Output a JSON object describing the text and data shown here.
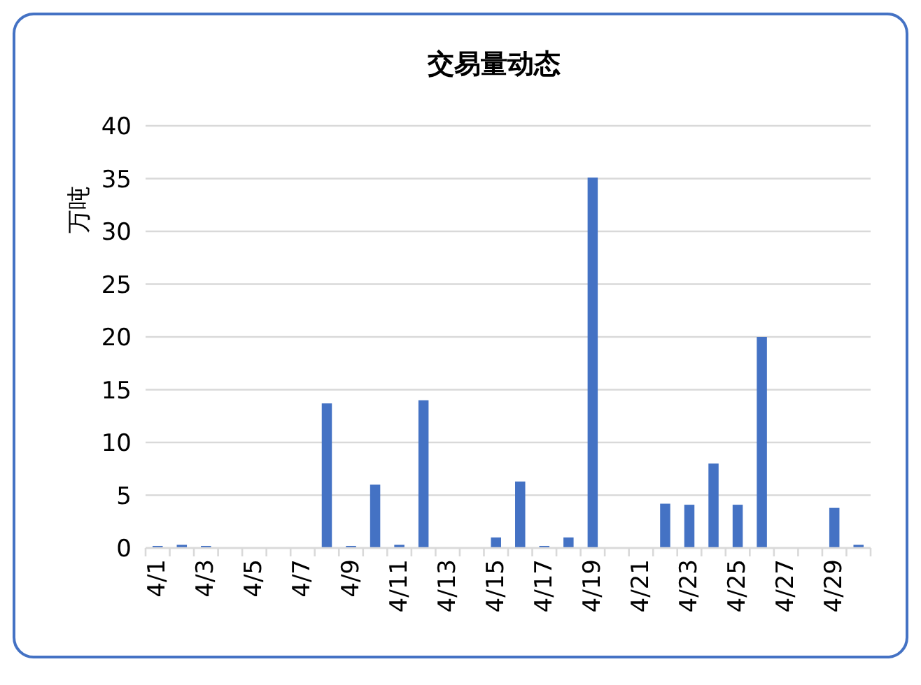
{
  "chart_data": {
    "type": "bar",
    "title": "交易量动态",
    "ylabel": "万吨",
    "categories": [
      "4/1",
      null,
      "4/3",
      null,
      "4/5",
      null,
      "4/7",
      null,
      "4/9",
      null,
      "4/11",
      null,
      "4/13",
      null,
      "4/15",
      null,
      "4/17",
      null,
      "4/19",
      null,
      "4/21",
      null,
      "4/23",
      null,
      "4/25",
      null,
      "4/27",
      null,
      "4/29",
      null
    ],
    "values": [
      0.2,
      0.3,
      0.2,
      0,
      0,
      0,
      0,
      13.7,
      0.2,
      6.0,
      0.3,
      14.0,
      0,
      0,
      1.0,
      6.3,
      0.2,
      1.0,
      35.1,
      0,
      0,
      4.2,
      4.1,
      8.0,
      4.1,
      20.0,
      0,
      0,
      3.8,
      0.3
    ],
    "color": "#4472c4",
    "ylim": [
      0,
      40
    ],
    "yticks": [
      0,
      5,
      10,
      15,
      20,
      25,
      30,
      35,
      40
    ],
    "grid": "y",
    "legend": false
  }
}
